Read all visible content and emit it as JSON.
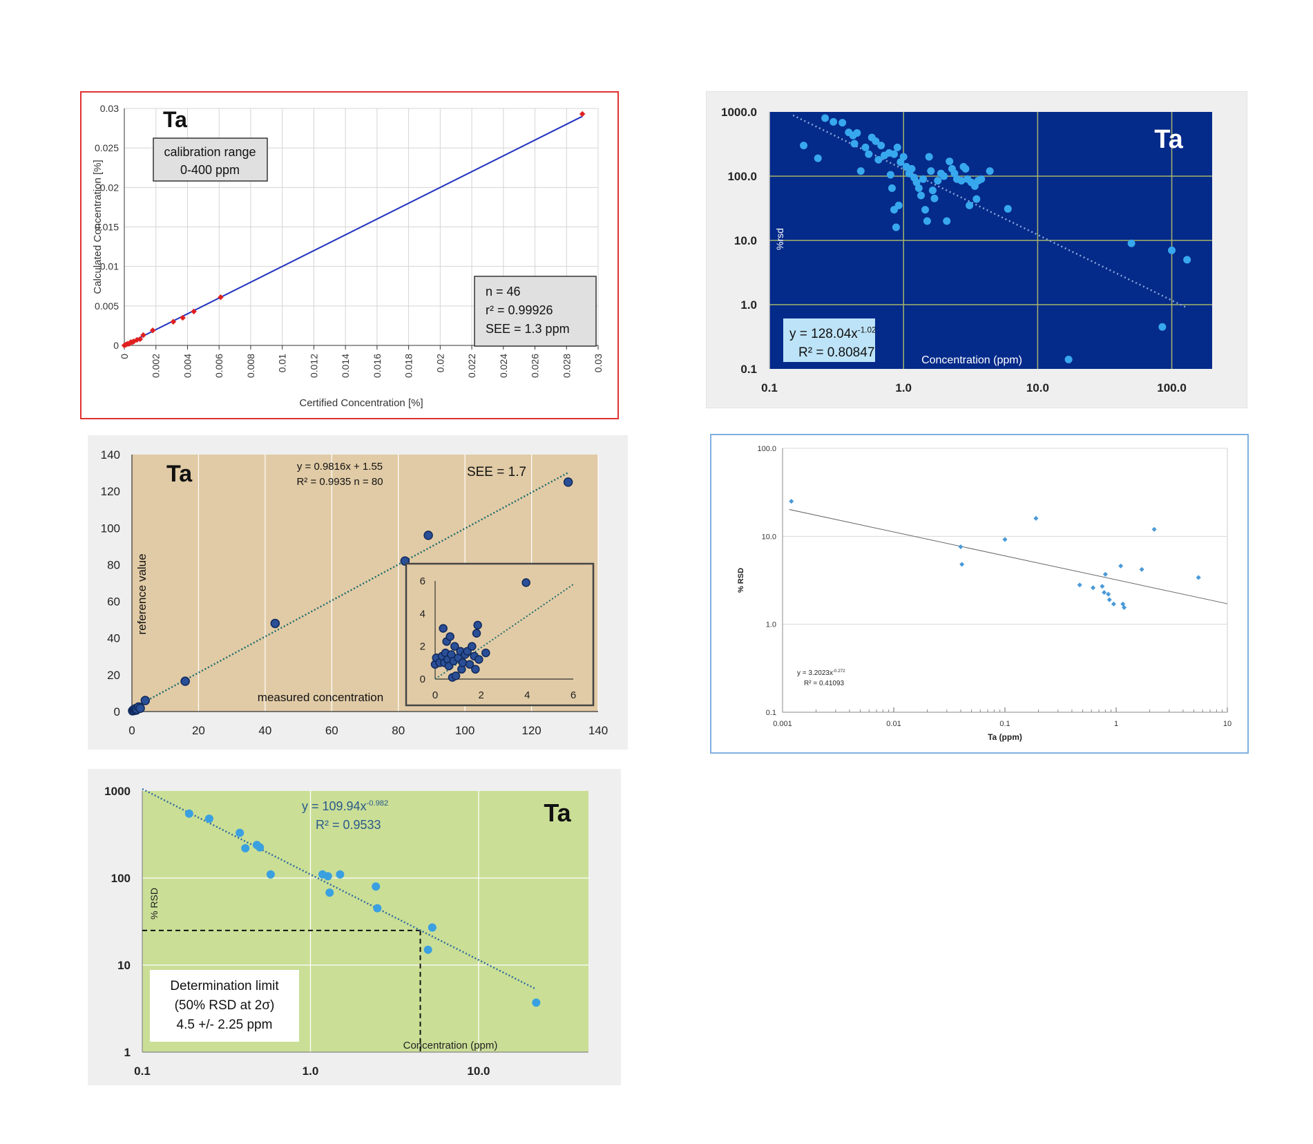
{
  "chart_data": [
    {
      "type": "scatter",
      "element": "Ta",
      "ylabel": "Calculated Concentration [%]",
      "xlabel": "Certified Concentration [%]",
      "xlim": [
        0,
        0.03
      ],
      "ylim": [
        0,
        0.03
      ],
      "xticks": [
        "0",
        "0.002",
        "0.004",
        "0.006",
        "0.008",
        "0.01",
        "0.012",
        "0.014",
        "0.016",
        "0.018",
        "0.02",
        "0.022",
        "0.024",
        "0.026",
        "0.028",
        "0.03"
      ],
      "yticks": [
        "0",
        "0.005",
        "0.01",
        "0.015",
        "0.02",
        "0.025",
        "0.03"
      ],
      "box_range": [
        "calibration range",
        "0-400 ppm"
      ],
      "stats": [
        "n = 46",
        "r² = 0.99926",
        "SEE = 1.3 ppm"
      ],
      "fit": {
        "slope": 1.0,
        "intercept": 0
      },
      "points": [
        [
          0.0,
          0.0
        ],
        [
          0.0001,
          0.0001
        ],
        [
          0.0002,
          0.0002
        ],
        [
          0.0003,
          0.0002
        ],
        [
          0.0004,
          0.0004
        ],
        [
          0.0005,
          0.0004
        ],
        [
          0.0006,
          0.0005
        ],
        [
          0.0008,
          0.0007
        ],
        [
          0.001,
          0.0008
        ],
        [
          0.0012,
          0.0013
        ],
        [
          0.0018,
          0.0019
        ],
        [
          0.0031,
          0.003
        ],
        [
          0.0037,
          0.0035
        ],
        [
          0.0044,
          0.0043
        ],
        [
          0.0061,
          0.0061
        ],
        [
          0.029,
          0.0293
        ]
      ]
    },
    {
      "type": "scatter",
      "element": "Ta",
      "ylabel": "%rsd",
      "xlabel": "Concentration (ppm)",
      "xscale": "log",
      "yscale": "log",
      "xlim": [
        0.1,
        200
      ],
      "ylim": [
        0.1,
        1000
      ],
      "xticks": [
        "0.1",
        "1.0",
        "10.0",
        "100.0"
      ],
      "yticks": [
        "0.1",
        "1.0",
        "10.0",
        "100.0",
        "1000.0"
      ],
      "equation": {
        "base": "y = 128.04x",
        "exp": "-1.02"
      },
      "r2": "R² = 0.80847",
      "fit": {
        "a": 128.04,
        "b": -1.02,
        "xmin": 0.15,
        "xmax": 130
      },
      "points": [
        [
          0.18,
          300
        ],
        [
          0.23,
          190
        ],
        [
          0.26,
          800
        ],
        [
          0.3,
          700
        ],
        [
          0.35,
          680
        ],
        [
          0.39,
          480
        ],
        [
          0.42,
          430
        ],
        [
          0.45,
          470
        ],
        [
          0.43,
          320
        ],
        [
          0.48,
          120
        ],
        [
          0.52,
          280
        ],
        [
          0.55,
          220
        ],
        [
          0.58,
          400
        ],
        [
          0.62,
          350
        ],
        [
          0.68,
          300
        ],
        [
          0.65,
          180
        ],
        [
          0.72,
          210
        ],
        [
          0.78,
          230
        ],
        [
          0.85,
          220
        ],
        [
          0.9,
          280
        ],
        [
          0.95,
          165
        ],
        [
          0.8,
          105
        ],
        [
          0.82,
          65
        ],
        [
          0.85,
          30
        ],
        [
          0.88,
          16
        ],
        [
          0.92,
          35
        ],
        [
          1.0,
          200
        ],
        [
          1.05,
          140
        ],
        [
          1.1,
          110
        ],
        [
          1.15,
          130
        ],
        [
          1.2,
          95
        ],
        [
          1.25,
          80
        ],
        [
          1.3,
          65
        ],
        [
          1.35,
          50
        ],
        [
          1.4,
          90
        ],
        [
          1.45,
          30
        ],
        [
          1.5,
          20
        ],
        [
          1.55,
          200
        ],
        [
          1.6,
          120
        ],
        [
          1.65,
          60
        ],
        [
          1.7,
          45
        ],
        [
          1.8,
          85
        ],
        [
          1.9,
          110
        ],
        [
          2.0,
          100
        ],
        [
          2.1,
          20
        ],
        [
          2.2,
          170
        ],
        [
          2.3,
          130
        ],
        [
          2.4,
          110
        ],
        [
          2.5,
          90
        ],
        [
          2.7,
          85
        ],
        [
          2.8,
          140
        ],
        [
          2.9,
          130
        ],
        [
          3.0,
          90
        ],
        [
          3.2,
          80
        ],
        [
          3.4,
          70
        ],
        [
          3.6,
          85
        ],
        [
          3.8,
          90
        ],
        [
          3.1,
          35
        ],
        [
          3.5,
          44
        ],
        [
          4.4,
          120
        ],
        [
          6.0,
          31
        ],
        [
          17,
          0.14
        ],
        [
          50,
          9
        ],
        [
          85,
          0.45
        ],
        [
          100,
          7
        ],
        [
          130,
          5
        ]
      ]
    },
    {
      "type": "scatter",
      "element": "Ta",
      "ylabel": "reference value",
      "xlabel": "measured concentration",
      "xlim": [
        0,
        140
      ],
      "ylim": [
        0,
        140
      ],
      "xticks": [
        "0",
        "20",
        "40",
        "60",
        "80",
        "100",
        "120",
        "140"
      ],
      "yticks": [
        "0",
        "20",
        "40",
        "60",
        "80",
        "100",
        "120",
        "140"
      ],
      "equation": "y = 0.9816x + 1.55",
      "r2n": "R² = 0.9935   n = 80",
      "see": "SEE = 1.7",
      "fit": {
        "slope": 0.9816,
        "intercept": 1.55
      },
      "points": [
        [
          0.2,
          0.4
        ],
        [
          0.5,
          1.0
        ],
        [
          0.8,
          0.6
        ],
        [
          1.0,
          1.5
        ],
        [
          1.3,
          0.8
        ],
        [
          1.5,
          1.2
        ],
        [
          2.0,
          2.5
        ],
        [
          2.5,
          1.8
        ],
        [
          4.0,
          6.0
        ],
        [
          16,
          16.5
        ],
        [
          43,
          48
        ],
        [
          82,
          82
        ],
        [
          89,
          96
        ],
        [
          131,
          125
        ]
      ],
      "inset": {
        "xlim": [
          0,
          6
        ],
        "ylim": [
          0,
          6
        ],
        "xticks": [
          "0",
          "2",
          "4",
          "6"
        ],
        "yticks": [
          "0",
          "2",
          "4",
          "6"
        ],
        "points": [
          [
            0.0,
            0.9
          ],
          [
            0.05,
            1.3
          ],
          [
            0.2,
            1.0
          ],
          [
            0.3,
            1.4
          ],
          [
            0.35,
            3.1
          ],
          [
            0.4,
            1.0
          ],
          [
            0.45,
            1.6
          ],
          [
            0.5,
            2.3
          ],
          [
            0.55,
            1.2
          ],
          [
            0.6,
            0.8
          ],
          [
            0.65,
            2.6
          ],
          [
            0.7,
            1.5
          ],
          [
            0.75,
            0.1
          ],
          [
            0.8,
            1.1
          ],
          [
            0.85,
            2.0
          ],
          [
            0.9,
            0.2
          ],
          [
            1.0,
            1.3
          ],
          [
            1.1,
            1.7
          ],
          [
            1.15,
            0.6
          ],
          [
            1.2,
            1.0
          ],
          [
            1.3,
            1.5
          ],
          [
            1.4,
            1.7
          ],
          [
            1.5,
            0.9
          ],
          [
            1.6,
            2.0
          ],
          [
            1.7,
            1.4
          ],
          [
            1.75,
            0.6
          ],
          [
            1.8,
            2.8
          ],
          [
            1.85,
            3.3
          ],
          [
            1.9,
            1.2
          ],
          [
            2.2,
            1.6
          ],
          [
            3.95,
            5.9
          ]
        ]
      }
    },
    {
      "type": "scatter",
      "ylabel": "% RSD",
      "xlabel": "Ta (ppm)",
      "xscale": "log",
      "yscale": "log",
      "xlim": [
        0.001,
        10
      ],
      "ylim": [
        0.1,
        100
      ],
      "xticks": [
        "0.001",
        "0.01",
        "0.1",
        "1",
        "10"
      ],
      "yticks": [
        "0.1",
        "1.0",
        "10.0",
        "100.0"
      ],
      "equation": {
        "base": "y = 3.2023x",
        "exp": "-0.272"
      },
      "r2": "R² = 0.41093",
      "fit": {
        "a": 3.2023,
        "b": -0.272,
        "xmin": 0.00115,
        "xmax": 10
      },
      "points": [
        [
          0.0012,
          25
        ],
        [
          0.04,
          7.6
        ],
        [
          0.041,
          4.8
        ],
        [
          0.1,
          9.2
        ],
        [
          0.19,
          16
        ],
        [
          0.47,
          2.8
        ],
        [
          0.62,
          2.6
        ],
        [
          0.75,
          2.7
        ],
        [
          0.78,
          2.3
        ],
        [
          0.8,
          3.7
        ],
        [
          0.85,
          2.2
        ],
        [
          0.87,
          1.9
        ],
        [
          0.95,
          1.7
        ],
        [
          1.1,
          4.6
        ],
        [
          1.15,
          1.7
        ],
        [
          1.18,
          1.55
        ],
        [
          1.7,
          4.2
        ],
        [
          2.2,
          12
        ],
        [
          5.5,
          3.4
        ]
      ]
    },
    {
      "type": "scatter",
      "element": "Ta",
      "ylabel": "% RSD",
      "xlabel": "Concentration   (ppm)",
      "xscale": "log",
      "yscale": "log",
      "xlim": [
        0.1,
        45
      ],
      "ylim": [
        1,
        1000
      ],
      "xticks": [
        "0.1",
        "1.0",
        "10.0"
      ],
      "yticks": [
        "1",
        "10",
        "100",
        "1000"
      ],
      "equation": {
        "base": "y = 109.94x",
        "exp": "-0.982"
      },
      "r2": "R² = 0.9533",
      "fit": {
        "a": 109.94,
        "b": -0.982,
        "xmin": 0.1,
        "xmax": 22
      },
      "limit": {
        "x": 4.5,
        "y": 25
      },
      "box_limit": [
        "Determination limit",
        "(50% RSD at 2σ)",
        "4.5 +/- 2.25 ppm"
      ],
      "points": [
        [
          0.19,
          550
        ],
        [
          0.25,
          480
        ],
        [
          0.38,
          330
        ],
        [
          0.41,
          220
        ],
        [
          0.48,
          240
        ],
        [
          0.5,
          225
        ],
        [
          0.58,
          110
        ],
        [
          1.18,
          110
        ],
        [
          1.27,
          105
        ],
        [
          1.3,
          68
        ],
        [
          1.5,
          110
        ],
        [
          2.45,
          80
        ],
        [
          2.5,
          45
        ],
        [
          5.0,
          15
        ],
        [
          5.3,
          27
        ],
        [
          22,
          3.7
        ]
      ]
    }
  ]
}
